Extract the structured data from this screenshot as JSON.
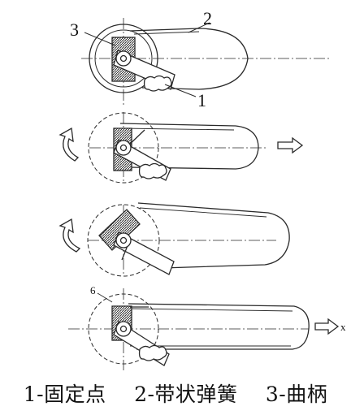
{
  "diagram": {
    "callouts": [
      "3",
      "2",
      "1"
    ],
    "dim_label": "6",
    "axis_label": "x",
    "legend": [
      "1-固定点",
      "2-带状弹簧",
      "3-曲柄"
    ]
  },
  "colors": {
    "line": "#2a2a2a",
    "hatch": "#555555",
    "background": "#ffffff"
  }
}
